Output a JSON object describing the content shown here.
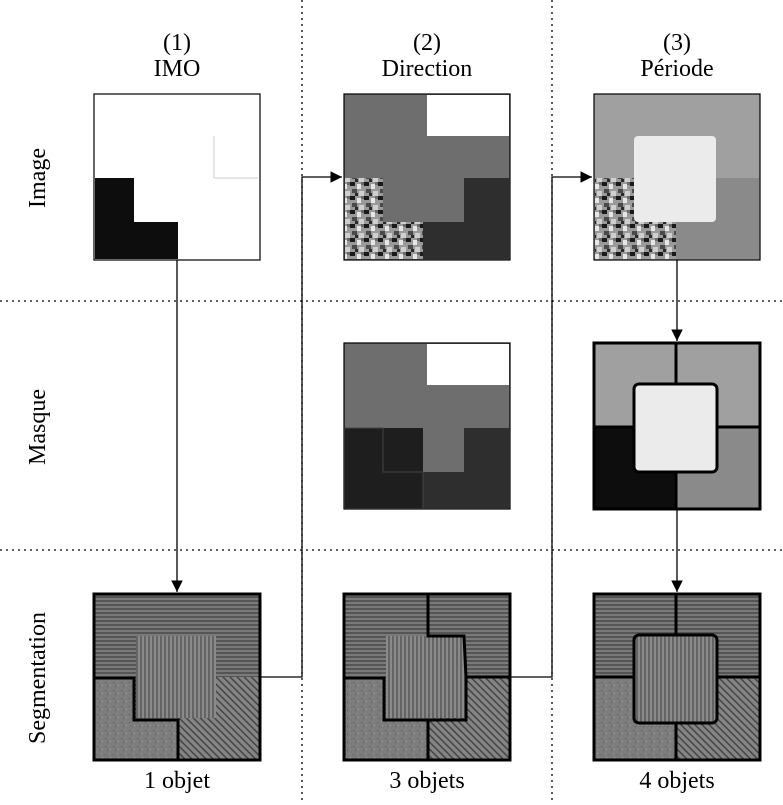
{
  "columns": [
    {
      "number": "(1)",
      "title": "IMO",
      "footer": "1 objet"
    },
    {
      "number": "(2)",
      "title": "Direction",
      "footer": "3 objets"
    },
    {
      "number": "(3)",
      "title": "Période",
      "footer": "4 objets"
    }
  ],
  "rows": [
    {
      "label": "Image"
    },
    {
      "label": "Masque"
    },
    {
      "label": "Segmentation"
    }
  ],
  "tones": {
    "black": "#0d0d0d",
    "dark": "#2e2e2e",
    "mid": "#6e6e6e",
    "light": "#a0a0a0",
    "pale": "#ebebeb",
    "white": "#ffffff"
  }
}
